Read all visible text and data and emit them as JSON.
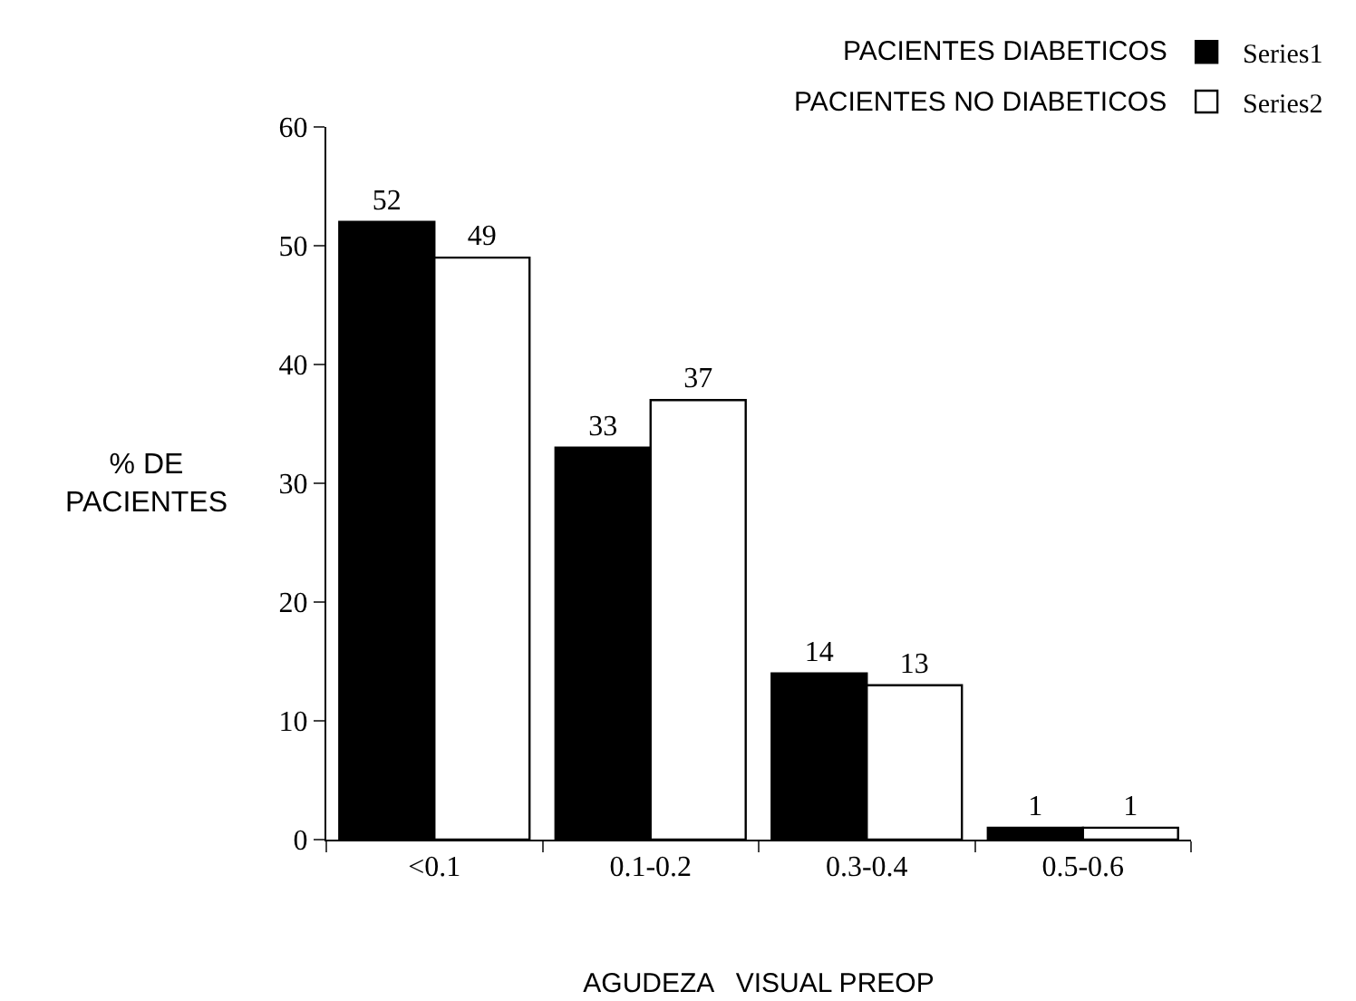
{
  "chart_data": {
    "type": "bar",
    "categories": [
      "<0.1",
      "0.1-0.2",
      "0.3-0.4",
      "0.5-0.6"
    ],
    "series": [
      {
        "name": "Series1",
        "color": "#000000",
        "values": [
          52,
          33,
          14,
          1
        ]
      },
      {
        "name": "Series2",
        "color": "#ffffff",
        "values": [
          49,
          37,
          13,
          1
        ]
      }
    ],
    "annotations": [
      "PACIENTES DIABETICOS",
      "PACIENTES NO DIABETICOS"
    ],
    "xlabel": "AGUDEZA   VISUAL PREOP",
    "ylabel": "% DE\nPACIENTES",
    "ylim": [
      0,
      60
    ],
    "yticks": [
      0,
      10,
      20,
      30,
      40,
      50,
      60
    ],
    "data_labels": true,
    "legend": "top right",
    "grid": false
  }
}
